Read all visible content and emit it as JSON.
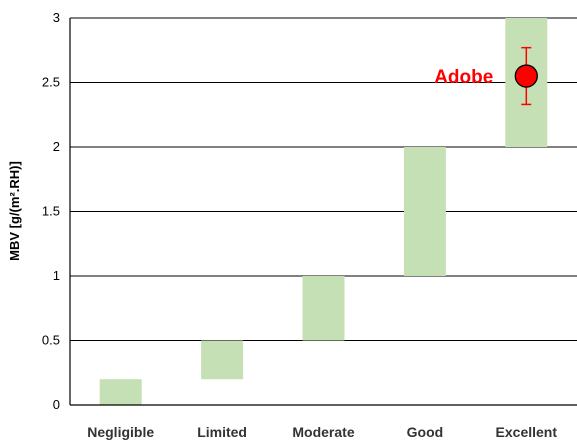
{
  "chart_data": {
    "type": "floating-bar",
    "categories": [
      "Negligible",
      "Limited",
      "Moderate",
      "Good",
      "Excellent"
    ],
    "ranges": [
      {
        "category": "Negligible",
        "low": 0,
        "high": 0.2
      },
      {
        "category": "Limited",
        "low": 0.2,
        "high": 0.5
      },
      {
        "category": "Moderate",
        "low": 0.5,
        "high": 1.0
      },
      {
        "category": "Good",
        "low": 1.0,
        "high": 2.0
      },
      {
        "category": "Excellent",
        "low": 2.0,
        "high": 3.0
      }
    ],
    "point": {
      "label": "Adobe",
      "category": "Excellent",
      "value": 2.55,
      "error_low": 2.33,
      "error_high": 2.77
    },
    "ylabel": "MBV [g/(m².RH)]",
    "ylim": [
      0,
      3
    ],
    "yticks": [
      "0",
      "0.5",
      "1",
      "1.5",
      "2",
      "2.5",
      "3"
    ],
    "grid": true,
    "colors": {
      "bar": "#c5e0b4",
      "point": "#ff0000",
      "annotation": "#ff0000",
      "grid": "#000000"
    }
  }
}
